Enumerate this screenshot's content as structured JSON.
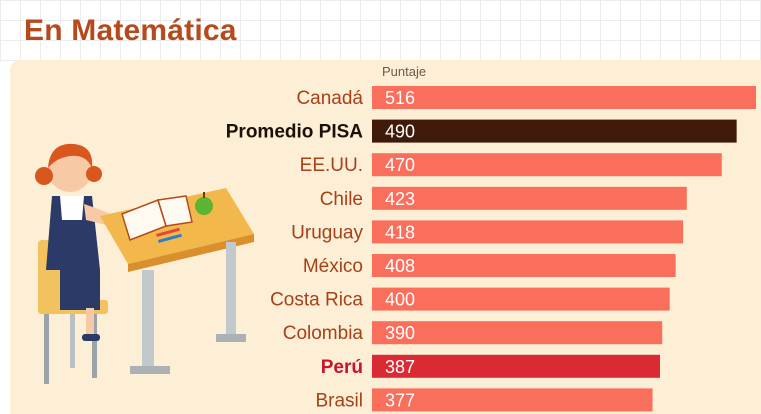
{
  "title": "En Matemática",
  "colors": {
    "title": "#b54a1c",
    "panel": "#fcefd6",
    "bar_default": "#f96f5b",
    "bar_average": "#3f1a0b",
    "bar_highlight": "#da2b34",
    "label_default": "#a64118",
    "label_average": "#1e1008",
    "label_highlight": "#c8142a",
    "value_text": "#ffffff"
  },
  "chart_data": {
    "type": "bar",
    "orientation": "horizontal",
    "title": "En Matemática",
    "value_header": "Puntaje",
    "categories": [
      "Canadá",
      "Promedio PISA",
      "EE.UU.",
      "Chile",
      "Uruguay",
      "México",
      "Costa Rica",
      "Colombia",
      "Perú",
      "Brasil"
    ],
    "values": [
      516,
      490,
      470,
      423,
      418,
      408,
      400,
      390,
      387,
      377
    ],
    "highlight": {
      "Promedio PISA": "average",
      "Perú": "highlight"
    },
    "grid": false,
    "legend": "none"
  },
  "illustration": {
    "icons": [
      "student-girl-icon",
      "desk-icon",
      "open-book-icon",
      "apple-icon",
      "pencils-icon",
      "chair-icon"
    ]
  }
}
